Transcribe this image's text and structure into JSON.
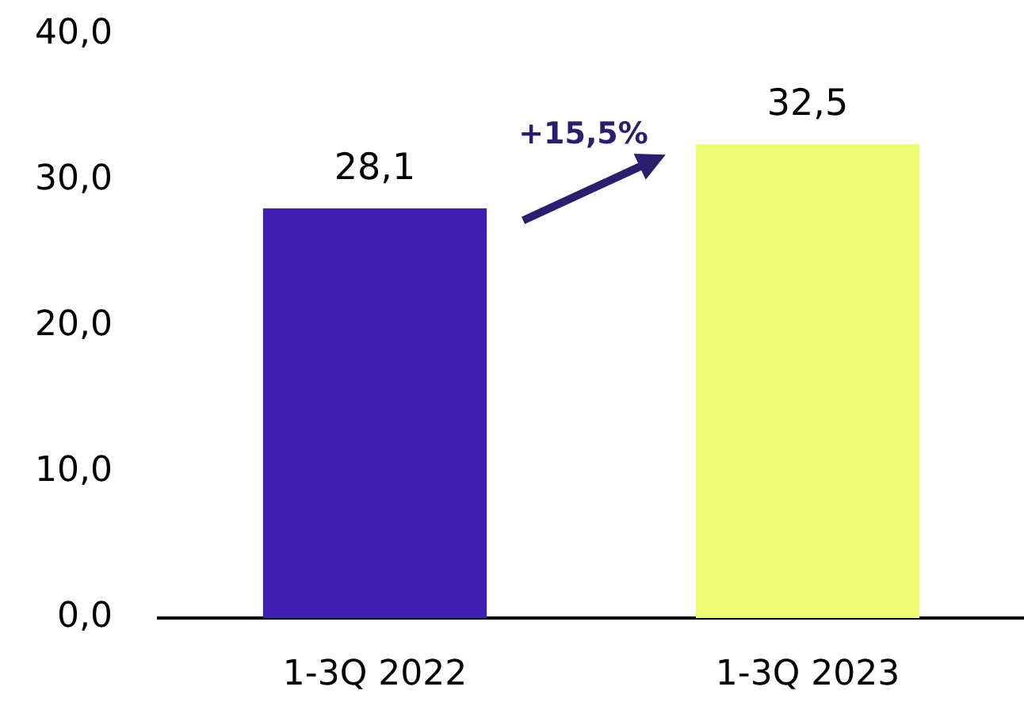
{
  "chart_data": {
    "type": "bar",
    "categories": [
      "1-3Q 2022",
      "1-3Q 2023"
    ],
    "values": [
      28.1,
      32.5
    ],
    "colors": [
      "#3e20b0",
      "#edfc72"
    ],
    "value_labels": [
      "28,1",
      "32,5"
    ],
    "ylim": [
      0,
      40
    ],
    "yticks": [
      {
        "value": 0,
        "label": "0,0"
      },
      {
        "value": 10,
        "label": "10,0"
      },
      {
        "value": 20,
        "label": "20,0"
      },
      {
        "value": 30,
        "label": "30,0"
      },
      {
        "value": 40,
        "label": "40,0"
      }
    ],
    "annotations": [
      "+15,5%"
    ]
  }
}
